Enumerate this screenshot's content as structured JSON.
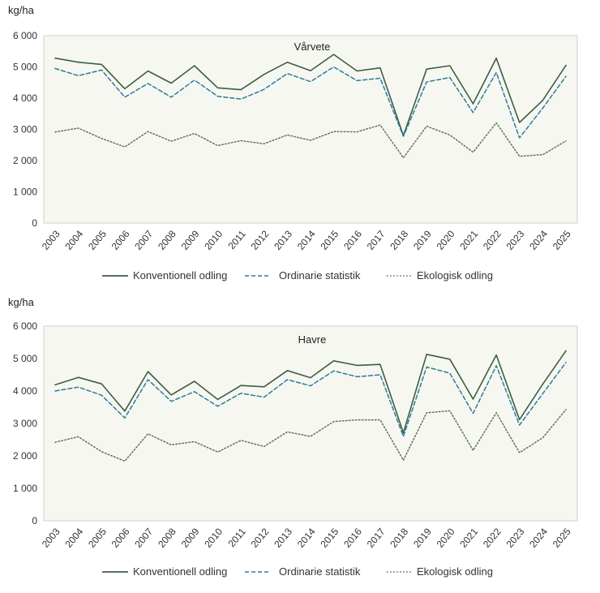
{
  "colors": {
    "plot_background": "#f7f7f1",
    "plot_border": "#d2d2c6",
    "konventionell": "#3d5e44",
    "ordinarie": "#2a7d9a",
    "ekologisk": "#5a7a50"
  },
  "chart_data": [
    {
      "type": "line",
      "title": "Vårvete",
      "ylabel": "kg/ha",
      "ylim": [
        0,
        6000
      ],
      "yticks": [
        0,
        1000,
        2000,
        3000,
        4000,
        5000,
        6000
      ],
      "ytick_labels": [
        "0",
        "1 000",
        "2 000",
        "3 000",
        "4 000",
        "5 000",
        "6 000"
      ],
      "legend_position": "bottom",
      "x": [
        "2003",
        "2004",
        "2005",
        "2006",
        "2007",
        "2008",
        "2009",
        "2010",
        "2011",
        "2012",
        "2013",
        "2014",
        "2015",
        "2016",
        "2017",
        "2018",
        "2019",
        "2020",
        "2021",
        "2022",
        "2023",
        "2024",
        "2025"
      ],
      "series": [
        {
          "name": "Konventionell odling",
          "style": "solid",
          "values": [
            5280,
            5150,
            5080,
            4300,
            4870,
            4480,
            5040,
            4330,
            4270,
            4760,
            5150,
            4880,
            5400,
            4870,
            4970,
            2800,
            4930,
            5040,
            3820,
            5280,
            3220,
            3930,
            5050
          ]
        },
        {
          "name": "Ordinarie statistik",
          "style": "dashed",
          "values": [
            4950,
            4720,
            4900,
            4030,
            4470,
            4030,
            4580,
            4060,
            3970,
            4280,
            4790,
            4530,
            5000,
            4560,
            4640,
            2780,
            4520,
            4660,
            3540,
            4820,
            2730,
            3680,
            4700
          ]
        },
        {
          "name": "Ekologisk odling",
          "style": "dotted",
          "values": [
            2920,
            3040,
            2710,
            2440,
            2930,
            2620,
            2870,
            2480,
            2640,
            2540,
            2820,
            2650,
            2930,
            2920,
            3140,
            2090,
            3100,
            2820,
            2270,
            3210,
            2140,
            2190,
            2630
          ]
        }
      ]
    },
    {
      "type": "line",
      "title": "Havre",
      "ylabel": "kg/ha",
      "ylim": [
        0,
        6000
      ],
      "yticks": [
        0,
        1000,
        2000,
        3000,
        4000,
        5000,
        6000
      ],
      "ytick_labels": [
        "0",
        "1 000",
        "2 000",
        "3 000",
        "4 000",
        "5 000",
        "6 000"
      ],
      "legend_position": "bottom",
      "x": [
        "2003",
        "2004",
        "2005",
        "2006",
        "2007",
        "2008",
        "2009",
        "2010",
        "2011",
        "2012",
        "2013",
        "2014",
        "2015",
        "2016",
        "2017",
        "2018",
        "2019",
        "2020",
        "2021",
        "2022",
        "2023",
        "2024",
        "2025"
      ],
      "series": [
        {
          "name": "Konventionell odling",
          "style": "solid",
          "values": [
            4190,
            4420,
            4220,
            3380,
            4600,
            3880,
            4300,
            3740,
            4170,
            4130,
            4630,
            4410,
            4930,
            4790,
            4820,
            2710,
            5130,
            4980,
            3750,
            5110,
            3120,
            4210,
            5240
          ]
        },
        {
          "name": "Ordinarie statistik",
          "style": "dashed",
          "values": [
            4000,
            4120,
            3870,
            3170,
            4350,
            3680,
            3980,
            3530,
            3930,
            3810,
            4350,
            4160,
            4620,
            4440,
            4500,
            2600,
            4740,
            4550,
            3310,
            4780,
            2950,
            3920,
            4880
          ]
        },
        {
          "name": "Ekologisk odling",
          "style": "dotted",
          "values": [
            2420,
            2590,
            2130,
            1840,
            2680,
            2340,
            2440,
            2120,
            2480,
            2290,
            2740,
            2600,
            3060,
            3110,
            3110,
            1870,
            3330,
            3390,
            2170,
            3330,
            2100,
            2560,
            3430
          ]
        }
      ]
    }
  ]
}
